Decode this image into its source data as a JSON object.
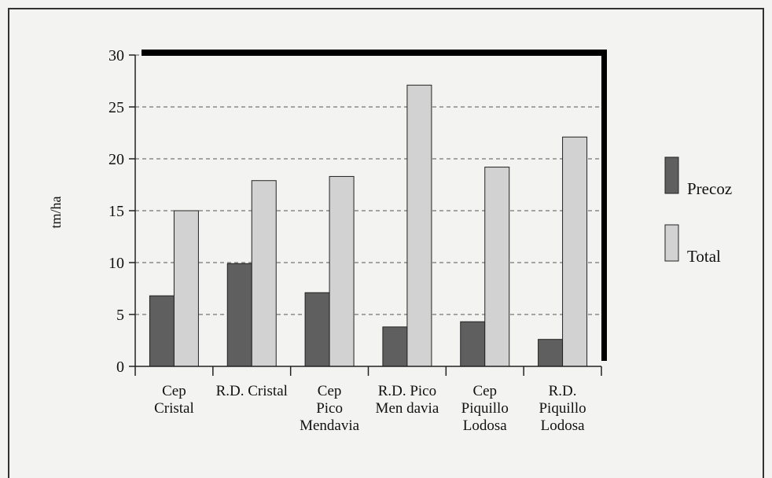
{
  "chart_data": {
    "type": "bar",
    "ylabel": "tm/ha",
    "ylim": [
      0,
      30
    ],
    "yticks": [
      0,
      5,
      10,
      15,
      20,
      25,
      30
    ],
    "grid": "horizontal dashed",
    "legend_position": "right",
    "categories": [
      [
        "Cep",
        "Cristal"
      ],
      [
        "R.D. Cristal"
      ],
      [
        "Cep",
        "Pico",
        "Mendavia"
      ],
      [
        "R.D. Pico",
        "Men davia"
      ],
      [
        "Cep",
        "Piquillo",
        "Lodosa"
      ],
      [
        "R.D.",
        "Piquillo",
        "Lodosa"
      ]
    ],
    "series": [
      {
        "name": "Precoz",
        "color": "#5f5f5f",
        "values": [
          6.8,
          9.9,
          7.1,
          3.8,
          4.3,
          2.6
        ]
      },
      {
        "name": "Total",
        "color": "#d2d2d2",
        "values": [
          15.0,
          17.9,
          18.3,
          27.1,
          19.2,
          22.1
        ]
      }
    ]
  }
}
